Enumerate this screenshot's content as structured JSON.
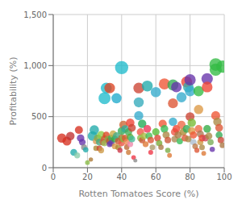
{
  "chart_data": {
    "type": "scatter",
    "xlabel": "Rotten Tomatoes Score (%)",
    "ylabel": "Profitability (%)",
    "xlim": [
      0,
      100
    ],
    "ylim": [
      0,
      1500
    ],
    "xticks": [
      0,
      20,
      40,
      60,
      80,
      100
    ],
    "yticks": [
      0,
      500,
      {
        "value": 1000,
        "label": "1,000"
      },
      {
        "value": 1500,
        "label": "1,500"
      }
    ],
    "grid": true,
    "x": [
      5,
      8,
      10,
      12,
      14,
      15,
      16,
      17,
      18,
      19,
      20,
      22,
      23,
      24,
      25,
      25,
      26,
      27,
      27,
      28,
      28,
      29,
      30,
      30,
      30,
      31,
      31,
      32,
      33,
      33,
      33,
      34,
      34,
      35,
      36,
      36,
      37,
      37,
      38,
      38,
      39,
      40,
      40,
      40,
      40,
      41,
      41,
      42,
      42,
      43,
      43,
      44,
      44,
      45,
      45,
      45,
      46,
      46,
      47,
      48,
      50,
      50,
      50,
      51,
      51,
      52,
      52,
      53,
      54,
      55,
      55,
      56,
      57,
      57,
      58,
      60,
      60,
      61,
      62,
      63,
      64,
      65,
      65,
      66,
      67,
      67,
      68,
      70,
      70,
      70,
      71,
      71,
      72,
      72,
      73,
      74,
      75,
      75,
      76,
      77,
      78,
      78,
      79,
      79,
      80,
      80,
      80,
      81,
      81,
      82,
      82,
      83,
      84,
      85,
      85,
      85,
      86,
      86,
      87,
      87,
      88,
      89,
      90,
      90,
      90,
      91,
      92,
      93,
      95,
      95,
      95,
      96,
      97,
      97,
      98,
      99,
      99
    ],
    "values": [
      290,
      260,
      310,
      150,
      120,
      370,
      290,
      250,
      200,
      175,
      50,
      80,
      310,
      370,
      260,
      190,
      290,
      250,
      190,
      320,
      170,
      250,
      680,
      280,
      240,
      780,
      320,
      280,
      780,
      260,
      230,
      290,
      240,
      330,
      280,
      210,
      680,
      310,
      260,
      200,
      170,
      980,
      360,
      290,
      240,
      420,
      280,
      380,
      290,
      250,
      200,
      350,
      150,
      440,
      300,
      230,
      390,
      280,
      100,
      70,
      780,
      640,
      510,
      350,
      290,
      430,
      270,
      310,
      230,
      800,
      380,
      310,
      270,
      150,
      200,
      740,
      350,
      290,
      240,
      200,
      430,
      820,
      380,
      320,
      270,
      170,
      120,
      810,
      630,
      450,
      350,
      280,
      790,
      380,
      320,
      260,
      690,
      420,
      350,
      290,
      840,
      380,
      790,
      280,
      860,
      750,
      500,
      440,
      360,
      320,
      250,
      210,
      170,
      750,
      570,
      380,
      330,
      250,
      290,
      200,
      140,
      290,
      870,
      790,
      380,
      310,
      250,
      180,
      1010,
      960,
      510,
      450,
      390,
      320,
      270,
      990,
      220
    ],
    "sizes": [
      55,
      50,
      45,
      30,
      22,
      40,
      35,
      28,
      22,
      18,
      14,
      12,
      60,
      55,
      25,
      18,
      35,
      30,
      20,
      40,
      22,
      28,
      90,
      35,
      24,
      75,
      30,
      27,
      70,
      35,
      22,
      28,
      25,
      32,
      30,
      22,
      65,
      35,
      27,
      20,
      16,
      110,
      40,
      32,
      24,
      42,
      27,
      36,
      28,
      24,
      18,
      34,
      16,
      45,
      30,
      22,
      38,
      27,
      13,
      10,
      72,
      63,
      52,
      34,
      28,
      44,
      25,
      30,
      22,
      75,
      37,
      32,
      27,
      15,
      20,
      65,
      35,
      28,
      24,
      18,
      42,
      78,
      37,
      32,
      27,
      18,
      14,
      75,
      62,
      45,
      35,
      28,
      70,
      37,
      32,
      25,
      65,
      42,
      35,
      30,
      76,
      37,
      70,
      27,
      80,
      68,
      50,
      44,
      35,
      32,
      24,
      20,
      16,
      68,
      55,
      37,
      32,
      24,
      29,
      20,
      14,
      29,
      82,
      72,
      37,
      31,
      24,
      17,
      100,
      93,
      50,
      44,
      38,
      31,
      26,
      96,
      21
    ],
    "colors": [
      "#d63020",
      "#d63020",
      "#c03030",
      "#20aaaa",
      "#88ccaa",
      "#d63020",
      "#6633aa",
      "#6633aa",
      "#888888",
      "#20aaaa",
      "#88bb44",
      "#aa7733",
      "#20aaaa",
      "#20aaaa",
      "#dd9955",
      "#aa8833",
      "#88aa44",
      "#44aa88",
      "#cc4433",
      "#88cc44",
      "#cc9944",
      "#cc6633",
      "#20bbcc",
      "#cc5533",
      "#99bb55",
      "#20bbcc",
      "#dd4422",
      "#88aa44",
      "#dd4422",
      "#bb5533",
      "#6633aa",
      "#44aa55",
      "#6644aa",
      "#ccaa44",
      "#33aa44",
      "#dd9944",
      "#20aacc",
      "#44aa88",
      "#cc5533",
      "#aa8833",
      "#cc3344",
      "#20bbcc",
      "#33aa55",
      "#aa7733",
      "#ee5544",
      "#cc6633",
      "#88bb44",
      "#33aa99",
      "#dd5533",
      "#ee8855",
      "#bb6633",
      "#44aa55",
      "#cc7733",
      "#ee4433",
      "#55aa33",
      "#ee88aa",
      "#cc4433",
      "#44bb99",
      "#ee3344",
      "#888888",
      "#cc4433",
      "#33aabb",
      "#33aacc",
      "#ee5544",
      "#88bb44",
      "#22aa55",
      "#cc5533",
      "#aabb44",
      "#dd7733",
      "#20aaaa",
      "#ee3355",
      "#44bb55",
      "#dd5533",
      "#ee3344",
      "#aa9966",
      "#33aacc",
      "#55bb33",
      "#dd4433",
      "#77aa33",
      "#aa7744",
      "#ee5533",
      "#ee5533",
      "#33bb55",
      "#aa8844",
      "#cc5533",
      "#77aa44",
      "#dd7733",
      "#33aa55",
      "#dd5533",
      "#33aacc",
      "#ee5544",
      "#aa8855",
      "#6633aa",
      "#ee4433",
      "#aa7744",
      "#33bb55",
      "#33aacc",
      "#ee6644",
      "#aa8833",
      "#dd5533",
      "#ee4433",
      "#33aa55",
      "#33aaaa",
      "#aa8844",
      "#6633aa",
      "#33aacc",
      "#cc4433",
      "#77bb33",
      "#dd9944",
      "#ee5533",
      "#aabbcc",
      "#bb7744",
      "#dd5533",
      "#33bb44",
      "#dd9944",
      "#ee6644",
      "#aa7755",
      "#cc9944",
      "#ee4433",
      "#aa8844",
      "#dd7733",
      "#cc4455",
      "#6633aa",
      "#ee4433",
      "#33aa44",
      "#aa8844",
      "#77aa55",
      "#6633aa",
      "#33bb44",
      "#33bb44",
      "#ee5533",
      "#aa8844",
      "#dd5533",
      "#33aa55",
      "#cc4433",
      "#33bb44",
      "#aa7744"
    ]
  }
}
